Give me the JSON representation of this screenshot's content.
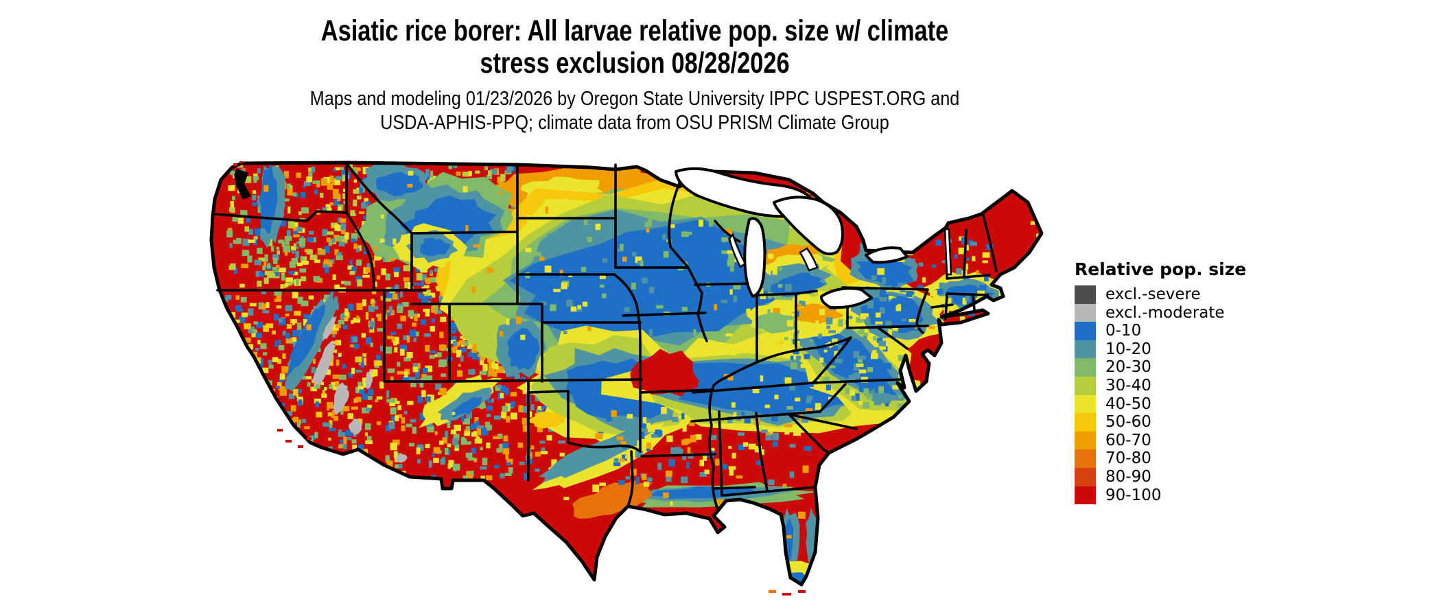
{
  "title": {
    "line1": "Asiatic rice borer: All larvae relative pop. size w/ climate",
    "line2": "stress exclusion 08/28/2026"
  },
  "subtitle": {
    "line1": "Maps and modeling 01/23/2026 by Oregon State University IPPC USPEST.ORG and",
    "line2": "USDA-APHIS-PPQ; climate data from OSU PRISM Climate Group"
  },
  "legend": {
    "title": "Relative pop. size",
    "entries": [
      {
        "label": "excl.-severe",
        "color": "#4d4d4d",
        "value_range": null
      },
      {
        "label": "excl.-moderate",
        "color": "#b8b8b8",
        "value_range": null
      },
      {
        "label": "0-10",
        "color": "#1d70c6",
        "value_range": [
          0,
          10
        ]
      },
      {
        "label": "10-20",
        "color": "#4f93a4",
        "value_range": [
          10,
          20
        ]
      },
      {
        "label": "20-30",
        "color": "#7fb969",
        "value_range": [
          20,
          30
        ]
      },
      {
        "label": "30-40",
        "color": "#b8cd3c",
        "value_range": [
          30,
          40
        ]
      },
      {
        "label": "40-50",
        "color": "#eae42f",
        "value_range": [
          40,
          50
        ]
      },
      {
        "label": "50-60",
        "color": "#f6c80a",
        "value_range": [
          50,
          60
        ]
      },
      {
        "label": "60-70",
        "color": "#f09d00",
        "value_range": [
          60,
          70
        ]
      },
      {
        "label": "70-80",
        "color": "#e5720d",
        "value_range": [
          70,
          80
        ]
      },
      {
        "label": "80-90",
        "color": "#d63f10",
        "value_range": [
          80,
          90
        ]
      },
      {
        "label": "90-100",
        "color": "#cc0a0a",
        "value_range": [
          90,
          100
        ]
      }
    ]
  },
  "map": {
    "seed": 20260828,
    "palette": {
      "red": "#cc0a0a",
      "orred": "#d63f10",
      "dorange": "#e5720d",
      "orange": "#f09d00",
      "gold": "#f6c80a",
      "yellow": "#eae42f",
      "ygreen": "#b8cd3c",
      "green": "#7fb969",
      "teal": "#4f93a4",
      "blue": "#1d70c6",
      "gray_mod": "#b8b8b8",
      "gray_sev": "#4d4d4d"
    },
    "base_color_key": "red",
    "regions_summary": [
      "Most of CONUS 90-100 (red), heavy mountain-west speckle of 0-60 classes",
      "Large 0-10 (blue) band over Dakotas / southern Minnesota / Iowa / southern Wisconsin and Michigan, ringed by 10-60 classes",
      "Second 0-10 band through Kansas-Oklahoma and Arkansas-Tennessee-Kentucky",
      "Blue-teal strip along Gulf coast and central Florida fringes",
      "excl.-moderate (gray) streaks in eastern California / Sierra region",
      "Appalachian and Pennsylvania / New England mixed 0-50 patches"
    ],
    "blobs": [
      [
        "orange",
        840,
        275,
        130,
        35,
        -4
      ],
      [
        "yellow",
        820,
        278,
        60,
        20,
        -4
      ],
      [
        "green",
        900,
        295,
        45,
        18,
        0
      ],
      [
        "teal",
        930,
        308,
        40,
        16,
        0
      ],
      [
        "gold",
        945,
        415,
        300,
        150,
        -7
      ],
      [
        "yellow",
        945,
        413,
        282,
        136,
        -7
      ],
      [
        "ygreen",
        945,
        412,
        258,
        122,
        -7
      ],
      [
        "green",
        946,
        411,
        238,
        110,
        -7
      ],
      [
        "teal",
        947,
        410,
        215,
        96,
        -7
      ],
      [
        "blue",
        948,
        410,
        190,
        82,
        -7
      ],
      [
        "green",
        640,
        320,
        110,
        62,
        -10
      ],
      [
        "teal",
        646,
        323,
        88,
        48,
        -10
      ],
      [
        "blue",
        652,
        326,
        66,
        35,
        -10
      ],
      [
        "teal",
        575,
        265,
        50,
        26,
        0
      ],
      [
        "blue",
        580,
        268,
        34,
        17,
        0
      ],
      [
        "yellow",
        900,
        565,
        135,
        82,
        10
      ],
      [
        "ygreen",
        900,
        565,
        115,
        68,
        10
      ],
      [
        "teal",
        900,
        566,
        95,
        54,
        10
      ],
      [
        "blue",
        901,
        567,
        76,
        42,
        10
      ],
      [
        "yellow",
        1110,
        565,
        210,
        68,
        3
      ],
      [
        "ygreen",
        1110,
        565,
        185,
        55,
        3
      ],
      [
        "teal",
        1110,
        566,
        160,
        46,
        3
      ],
      [
        "blue",
        1112,
        567,
        135,
        37,
        3
      ],
      [
        "red",
        970,
        545,
        48,
        32,
        0
      ],
      [
        "green",
        1040,
        722,
        140,
        16,
        -2
      ],
      [
        "teal",
        1035,
        720,
        110,
        11,
        -2
      ],
      [
        "blue",
        1028,
        718,
        75,
        8,
        -2
      ],
      [
        "yellow",
        1240,
        525,
        135,
        60,
        38
      ],
      [
        "ygreen",
        1240,
        525,
        112,
        46,
        38
      ],
      [
        "teal",
        1242,
        526,
        90,
        36,
        38
      ],
      [
        "blue",
        1244,
        527,
        70,
        27,
        38
      ],
      [
        "yellow",
        1300,
        455,
        85,
        48,
        12
      ],
      [
        "teal",
        1302,
        456,
        62,
        35,
        12
      ],
      [
        "blue",
        1305,
        458,
        45,
        25,
        12
      ],
      [
        "teal",
        1288,
        393,
        52,
        27,
        10
      ],
      [
        "blue",
        1290,
        395,
        40,
        20,
        10
      ],
      [
        "yellow",
        1408,
        428,
        62,
        30,
        8
      ],
      [
        "teal",
        1412,
        430,
        48,
        22,
        8
      ],
      [
        "blue",
        1415,
        432,
        34,
        15,
        8
      ],
      [
        "orange",
        1155,
        375,
        45,
        18,
        -8
      ],
      [
        "yellow",
        1158,
        390,
        48,
        18,
        -8
      ],
      [
        "teal",
        1160,
        408,
        50,
        22,
        -8
      ],
      [
        "blue",
        1162,
        415,
        38,
        15,
        -8
      ],
      [
        "yellow",
        1160,
        465,
        70,
        26,
        4
      ],
      [
        "orange",
        1190,
        458,
        35,
        14,
        0
      ],
      [
        "green",
        1130,
        470,
        30,
        14,
        0
      ],
      [
        "teal",
        1148,
        795,
        15,
        52,
        6
      ],
      [
        "blue",
        1146,
        800,
        9,
        38,
        6
      ],
      [
        "teal",
        1186,
        790,
        11,
        48,
        -3
      ],
      [
        "yellow",
        1162,
        832,
        32,
        13,
        0
      ],
      [
        "blue",
        1160,
        842,
        20,
        7,
        0
      ],
      [
        "yellow",
        875,
        668,
        100,
        22,
        -25
      ],
      [
        "teal",
        868,
        662,
        80,
        16,
        -25
      ],
      [
        "gold",
        798,
        612,
        26,
        11,
        0
      ],
      [
        "dorange",
        893,
        728,
        60,
        20,
        -18
      ],
      [
        "yellow",
        668,
        585,
        62,
        22,
        -28
      ],
      [
        "teal",
        676,
        590,
        42,
        14,
        -28
      ],
      [
        "blue",
        680,
        593,
        25,
        8,
        -28
      ],
      [
        "teal",
        758,
        505,
        34,
        44,
        4
      ],
      [
        "blue",
        762,
        510,
        22,
        30,
        4
      ],
      [
        "teal",
        452,
        498,
        17,
        75,
        26
      ],
      [
        "blue",
        447,
        493,
        11,
        58,
        26
      ],
      [
        "teal",
        396,
        295,
        19,
        62,
        3
      ],
      [
        "blue",
        391,
        291,
        12,
        50,
        3
      ],
      [
        "yellow",
        625,
        360,
        48,
        32,
        0
      ],
      [
        "teal",
        630,
        358,
        34,
        22,
        0
      ],
      [
        "blue",
        633,
        360,
        21,
        13,
        0
      ],
      [
        "gray_mod",
        472,
        530,
        8,
        36,
        22
      ],
      [
        "gray_mod",
        497,
        580,
        10,
        22,
        18
      ],
      [
        "gray_mod",
        518,
        622,
        9,
        11,
        0
      ],
      [
        "gray_mod",
        480,
        478,
        5,
        20,
        25
      ],
      [
        "gray_mod",
        538,
        552,
        5,
        15,
        12
      ],
      [
        "gray_mod",
        585,
        668,
        8,
        6,
        0
      ],
      [
        "ygreen",
        1066,
        263,
        13,
        4,
        -15
      ]
    ],
    "speckles": [
      {
        "b": [
          330,
          238,
          545,
          423
        ],
        "d": 0.4,
        "c": [
          "blue",
          "teal",
          "yellow",
          "green",
          "orange",
          "ygreen"
        ],
        "ph": "u"
      },
      {
        "b": [
          325,
          423,
          560,
          665
        ],
        "d": 0.36,
        "c": [
          "yellow",
          "blue",
          "teal",
          "orange",
          "gold",
          "green"
        ],
        "ph": "u"
      },
      {
        "b": [
          545,
          238,
          754,
          443
        ],
        "d": 0.4,
        "c": [
          "blue",
          "yellow",
          "teal",
          "green",
          "orange",
          "ygreen"
        ],
        "ph": "u"
      },
      {
        "b": [
          560,
          423,
          754,
          700
        ],
        "d": 0.36,
        "c": [
          "blue",
          "yellow",
          "teal",
          "orange",
          "green"
        ],
        "ph": "u"
      },
      {
        "b": [
          655,
          443,
          790,
          556
        ],
        "d": 0.3,
        "c": [
          "blue",
          "yellow",
          "teal",
          "green",
          "orange"
        ],
        "ph": "u"
      },
      {
        "b": [
          754,
          556,
          830,
          700
        ],
        "d": 0.25,
        "c": [
          "yellow",
          "teal",
          "blue",
          "orange"
        ],
        "ph": "u"
      },
      {
        "b": [
          1140,
          420,
          1320,
          600
        ],
        "d": 0.22,
        "c": [
          "blue",
          "green",
          "yellow",
          "teal"
        ],
        "ph": "o"
      },
      {
        "b": [
          1250,
          340,
          1450,
          480
        ],
        "d": 0.16,
        "c": [
          "blue",
          "yellow",
          "teal"
        ],
        "ph": "o"
      },
      {
        "b": [
          870,
          600,
          1190,
          710
        ],
        "d": 0.16,
        "c": [
          "yellow",
          "teal",
          "blue",
          "orange"
        ],
        "ph": "o"
      },
      {
        "b": [
          750,
          318,
          1160,
          500
        ],
        "d": 0.06,
        "c": [
          "yellow",
          "green",
          "teal"
        ],
        "ph": "o"
      },
      {
        "b": [
          330,
          238,
          1520,
          850
        ],
        "d": 0.015,
        "c": [
          "yellow",
          "orange"
        ],
        "ph": "o"
      }
    ],
    "offshore": [
      [
        "dorange",
        1120,
        860,
        11,
        4
      ],
      [
        "red",
        1140,
        864,
        13,
        4
      ],
      [
        "red",
        1163,
        860,
        11,
        4
      ],
      [
        "red",
        404,
        625,
        8,
        4
      ],
      [
        "red",
        416,
        641,
        9,
        4
      ],
      [
        "red",
        434,
        649,
        8,
        4
      ],
      [
        "red",
        447,
        637,
        7,
        4
      ],
      [
        "red",
        340,
        238,
        6,
        4
      ],
      [
        "red",
        349,
        235,
        5,
        3
      ]
    ]
  }
}
